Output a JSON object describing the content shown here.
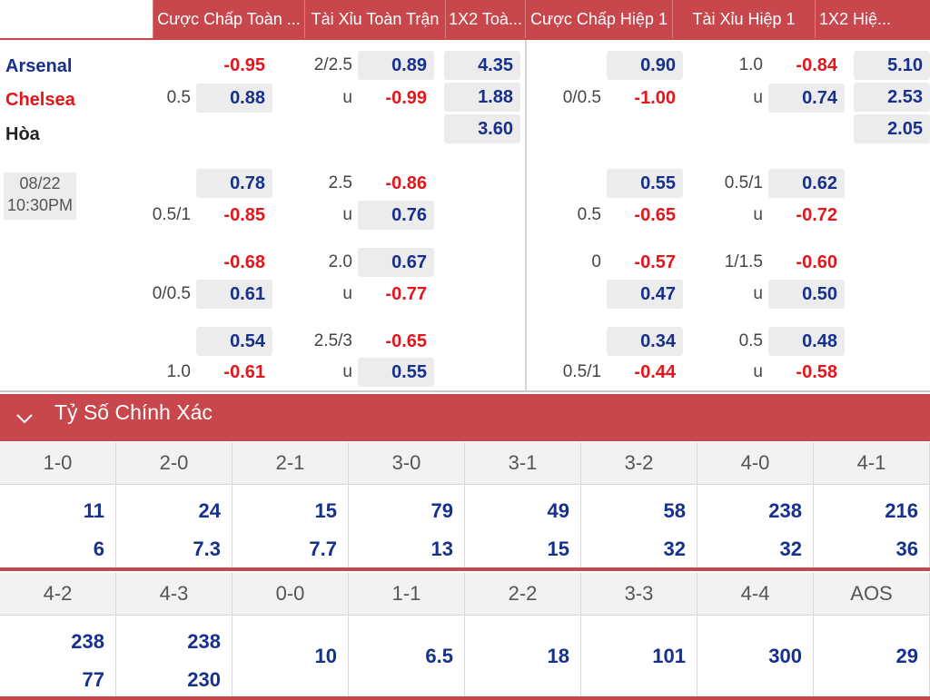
{
  "header": {
    "tabs": [
      {
        "label": "Cược Chấp Toàn ..."
      },
      {
        "label": "Tài Xỉu Toàn Trận"
      },
      {
        "label": "1X2 Toà..."
      },
      {
        "label": "Cược Chấp Hiệp 1"
      },
      {
        "label": "Tài Xỉu Hiệp 1"
      },
      {
        "label": "1X2 Hiệ..."
      }
    ]
  },
  "match": {
    "home": "Arsenal",
    "away": "Chelsea",
    "draw": "Hòa",
    "date": "08/22",
    "time": "10:30PM"
  },
  "odds": {
    "ft_hdp": [
      {
        "line": "",
        "v1": "-0.95",
        "line2": "0.5",
        "v2": "0.88"
      },
      {
        "line": "",
        "v1": "0.78",
        "line2": "0.5/1",
        "v2": "-0.85"
      },
      {
        "line": "",
        "v1": "-0.68",
        "line2": "0/0.5",
        "v2": "0.61"
      },
      {
        "line": "",
        "v1": "0.54",
        "line2": "1.0",
        "v2": "-0.61"
      }
    ],
    "ft_ou": [
      {
        "line": "2/2.5",
        "v1": "0.89",
        "line2": "u",
        "v2": "-0.99"
      },
      {
        "line": "2.5",
        "v1": "-0.86",
        "line2": "u",
        "v2": "0.76"
      },
      {
        "line": "2.0",
        "v1": "0.67",
        "line2": "u",
        "v2": "-0.77"
      },
      {
        "line": "2.5/3",
        "v1": "-0.65",
        "line2": "u",
        "v2": "0.55"
      }
    ],
    "ft_1x2": [
      "4.35",
      "1.88",
      "3.60"
    ],
    "h1_hdp": [
      {
        "line": "",
        "v1": "0.90",
        "line2": "0/0.5",
        "v2": "-1.00"
      },
      {
        "line": "",
        "v1": "0.55",
        "line2": "0.5",
        "v2": "-0.65"
      },
      {
        "line": "0",
        "v1": "-0.57",
        "line2": "",
        "v2": "0.47"
      },
      {
        "line": "",
        "v1": "0.34",
        "line2": "0.5/1",
        "v2": "-0.44"
      }
    ],
    "h1_ou": [
      {
        "line": "1.0",
        "v1": "-0.84",
        "line2": "u",
        "v2": "0.74"
      },
      {
        "line": "0.5/1",
        "v1": "0.62",
        "line2": "u",
        "v2": "-0.72"
      },
      {
        "line": "1/1.5",
        "v1": "-0.60",
        "line2": "u",
        "v2": "0.50"
      },
      {
        "line": "0.5",
        "v1": "0.48",
        "line2": "u",
        "v2": "-0.58"
      }
    ],
    "h1_1x2": [
      "5.10",
      "2.53",
      "2.05"
    ]
  },
  "exact_score": {
    "title": "Tỷ Số Chính Xác",
    "row1": [
      {
        "score": "1-0",
        "a": "11",
        "b": "6"
      },
      {
        "score": "2-0",
        "a": "24",
        "b": "7.3"
      },
      {
        "score": "2-1",
        "a": "15",
        "b": "7.7"
      },
      {
        "score": "3-0",
        "a": "79",
        "b": "13"
      },
      {
        "score": "3-1",
        "a": "49",
        "b": "15"
      },
      {
        "score": "3-2",
        "a": "58",
        "b": "32"
      },
      {
        "score": "4-0",
        "a": "238",
        "b": "32"
      },
      {
        "score": "4-1",
        "a": "216",
        "b": "36"
      }
    ],
    "row2": [
      {
        "score": "4-2",
        "a": "238",
        "b": "77"
      },
      {
        "score": "4-3",
        "a": "238",
        "b": "230"
      },
      {
        "score": "0-0",
        "a": "10",
        "b": ""
      },
      {
        "score": "1-1",
        "a": "6.5",
        "b": ""
      },
      {
        "score": "2-2",
        "a": "18",
        "b": ""
      },
      {
        "score": "3-3",
        "a": "101",
        "b": ""
      },
      {
        "score": "4-4",
        "a": "300",
        "b": ""
      },
      {
        "score": "AOS",
        "a": "29",
        "b": ""
      }
    ]
  },
  "colors": {
    "accent": "#c8474d",
    "home": "#16308c",
    "negative": "#e4151b"
  }
}
